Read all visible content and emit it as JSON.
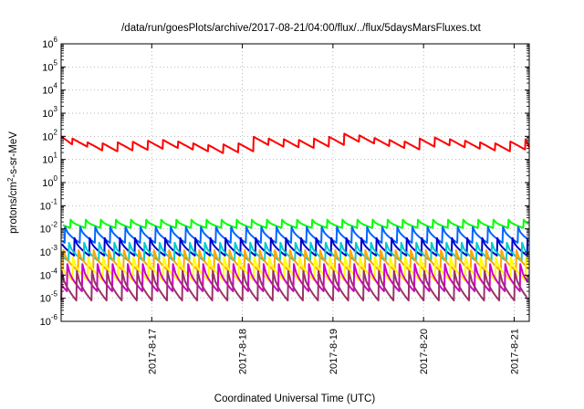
{
  "chart_data": {
    "type": "line",
    "title": "/data/run/goesPlots/archive/2017-08-21/04:00/flux/../flux/5daysMarsFluxes.txt",
    "xlabel": "Coordinated Universal Time (UTC)",
    "ylabel": "protons/cm2-s-sr-MeV",
    "yscale": "log",
    "ylim": [
      1e-06,
      1000000.0
    ],
    "xlim": [
      "2017-08-16T00:00",
      "2017-08-21T04:00"
    ],
    "grid": true,
    "y_tick_labels": [
      {
        "base": "10",
        "exp": "-6"
      },
      {
        "base": "10",
        "exp": "-5"
      },
      {
        "base": "10",
        "exp": "-4"
      },
      {
        "base": "10",
        "exp": "-3"
      },
      {
        "base": "10",
        "exp": "-2"
      },
      {
        "base": "10",
        "exp": "-1"
      },
      {
        "base": "10",
        "exp": "0"
      },
      {
        "base": "10",
        "exp": "1"
      },
      {
        "base": "10",
        "exp": "2"
      },
      {
        "base": "10",
        "exp": "3"
      },
      {
        "base": "10",
        "exp": "4"
      },
      {
        "base": "10",
        "exp": "5"
      },
      {
        "base": "10",
        "exp": "6"
      }
    ],
    "x_ticks": [
      {
        "label": "2017-8-17",
        "x": "2017-08-17T00:00"
      },
      {
        "label": "2017-8-18",
        "x": "2017-08-18T00:00"
      },
      {
        "label": "2017-8-19",
        "x": "2017-08-19T00:00"
      },
      {
        "label": "2017-8-20",
        "x": "2017-08-20T00:00"
      },
      {
        "label": "2017-8-21",
        "x": "2017-08-21T00:00"
      }
    ],
    "series": [
      {
        "color": "#ff0000",
        "style": "sawtooth",
        "peaks": [
          [
            "2017-08-16T00:00",
            100
          ],
          [
            "2017-08-16T03:00",
            80
          ],
          [
            "2017-08-16T07:00",
            55
          ],
          [
            "2017-08-16T11:00",
            50
          ],
          [
            "2017-08-16T15:00",
            55
          ],
          [
            "2017-08-16T19:00",
            58
          ],
          [
            "2017-08-16T23:00",
            65
          ],
          [
            "2017-08-17T03:00",
            70
          ],
          [
            "2017-08-17T07:00",
            60
          ],
          [
            "2017-08-17T11:00",
            50
          ],
          [
            "2017-08-17T15:00",
            42
          ],
          [
            "2017-08-17T19:00",
            45
          ],
          [
            "2017-08-17T23:00",
            50
          ],
          [
            "2017-08-18T03:00",
            95
          ],
          [
            "2017-08-18T07:00",
            80
          ],
          [
            "2017-08-18T11:00",
            75
          ],
          [
            "2017-08-18T15:00",
            70
          ],
          [
            "2017-08-18T19:00",
            80
          ],
          [
            "2017-08-18T23:00",
            95
          ],
          [
            "2017-08-19T03:00",
            130
          ],
          [
            "2017-08-19T07:00",
            110
          ],
          [
            "2017-08-19T11:00",
            85
          ],
          [
            "2017-08-19T15:00",
            70
          ],
          [
            "2017-08-19T19:00",
            60
          ],
          [
            "2017-08-19T23:00",
            80
          ],
          [
            "2017-08-20T03:00",
            90
          ],
          [
            "2017-08-20T07:00",
            75
          ],
          [
            "2017-08-20T11:00",
            65
          ],
          [
            "2017-08-20T15:00",
            55
          ],
          [
            "2017-08-20T19:00",
            50
          ],
          [
            "2017-08-20T23:00",
            60
          ],
          [
            "2017-08-21T03:00",
            75
          ]
        ],
        "drop_factor": 0.45
      },
      {
        "color": "#00ff00",
        "peak": 0.025,
        "trough": 0.011
      },
      {
        "color": "#0066ff",
        "peak": 0.012,
        "trough": 0.0025
      },
      {
        "color": "#0000cc",
        "peak": 0.004,
        "trough": 0.0007
      },
      {
        "color": "#00cccc",
        "peak": 0.0025,
        "trough": 0.0004
      },
      {
        "color": "#ffa500",
        "peak": 0.0012,
        "trough": 0.00015
      },
      {
        "color": "#ffff00",
        "peak": 0.0006,
        "trough": 6e-05
      },
      {
        "color": "#cc00cc",
        "peak": 0.0003,
        "trough": 2e-05
      },
      {
        "color": "#993366",
        "peak": 0.00015,
        "trough": 8e-06
      }
    ],
    "decay_period_hours": 4
  }
}
